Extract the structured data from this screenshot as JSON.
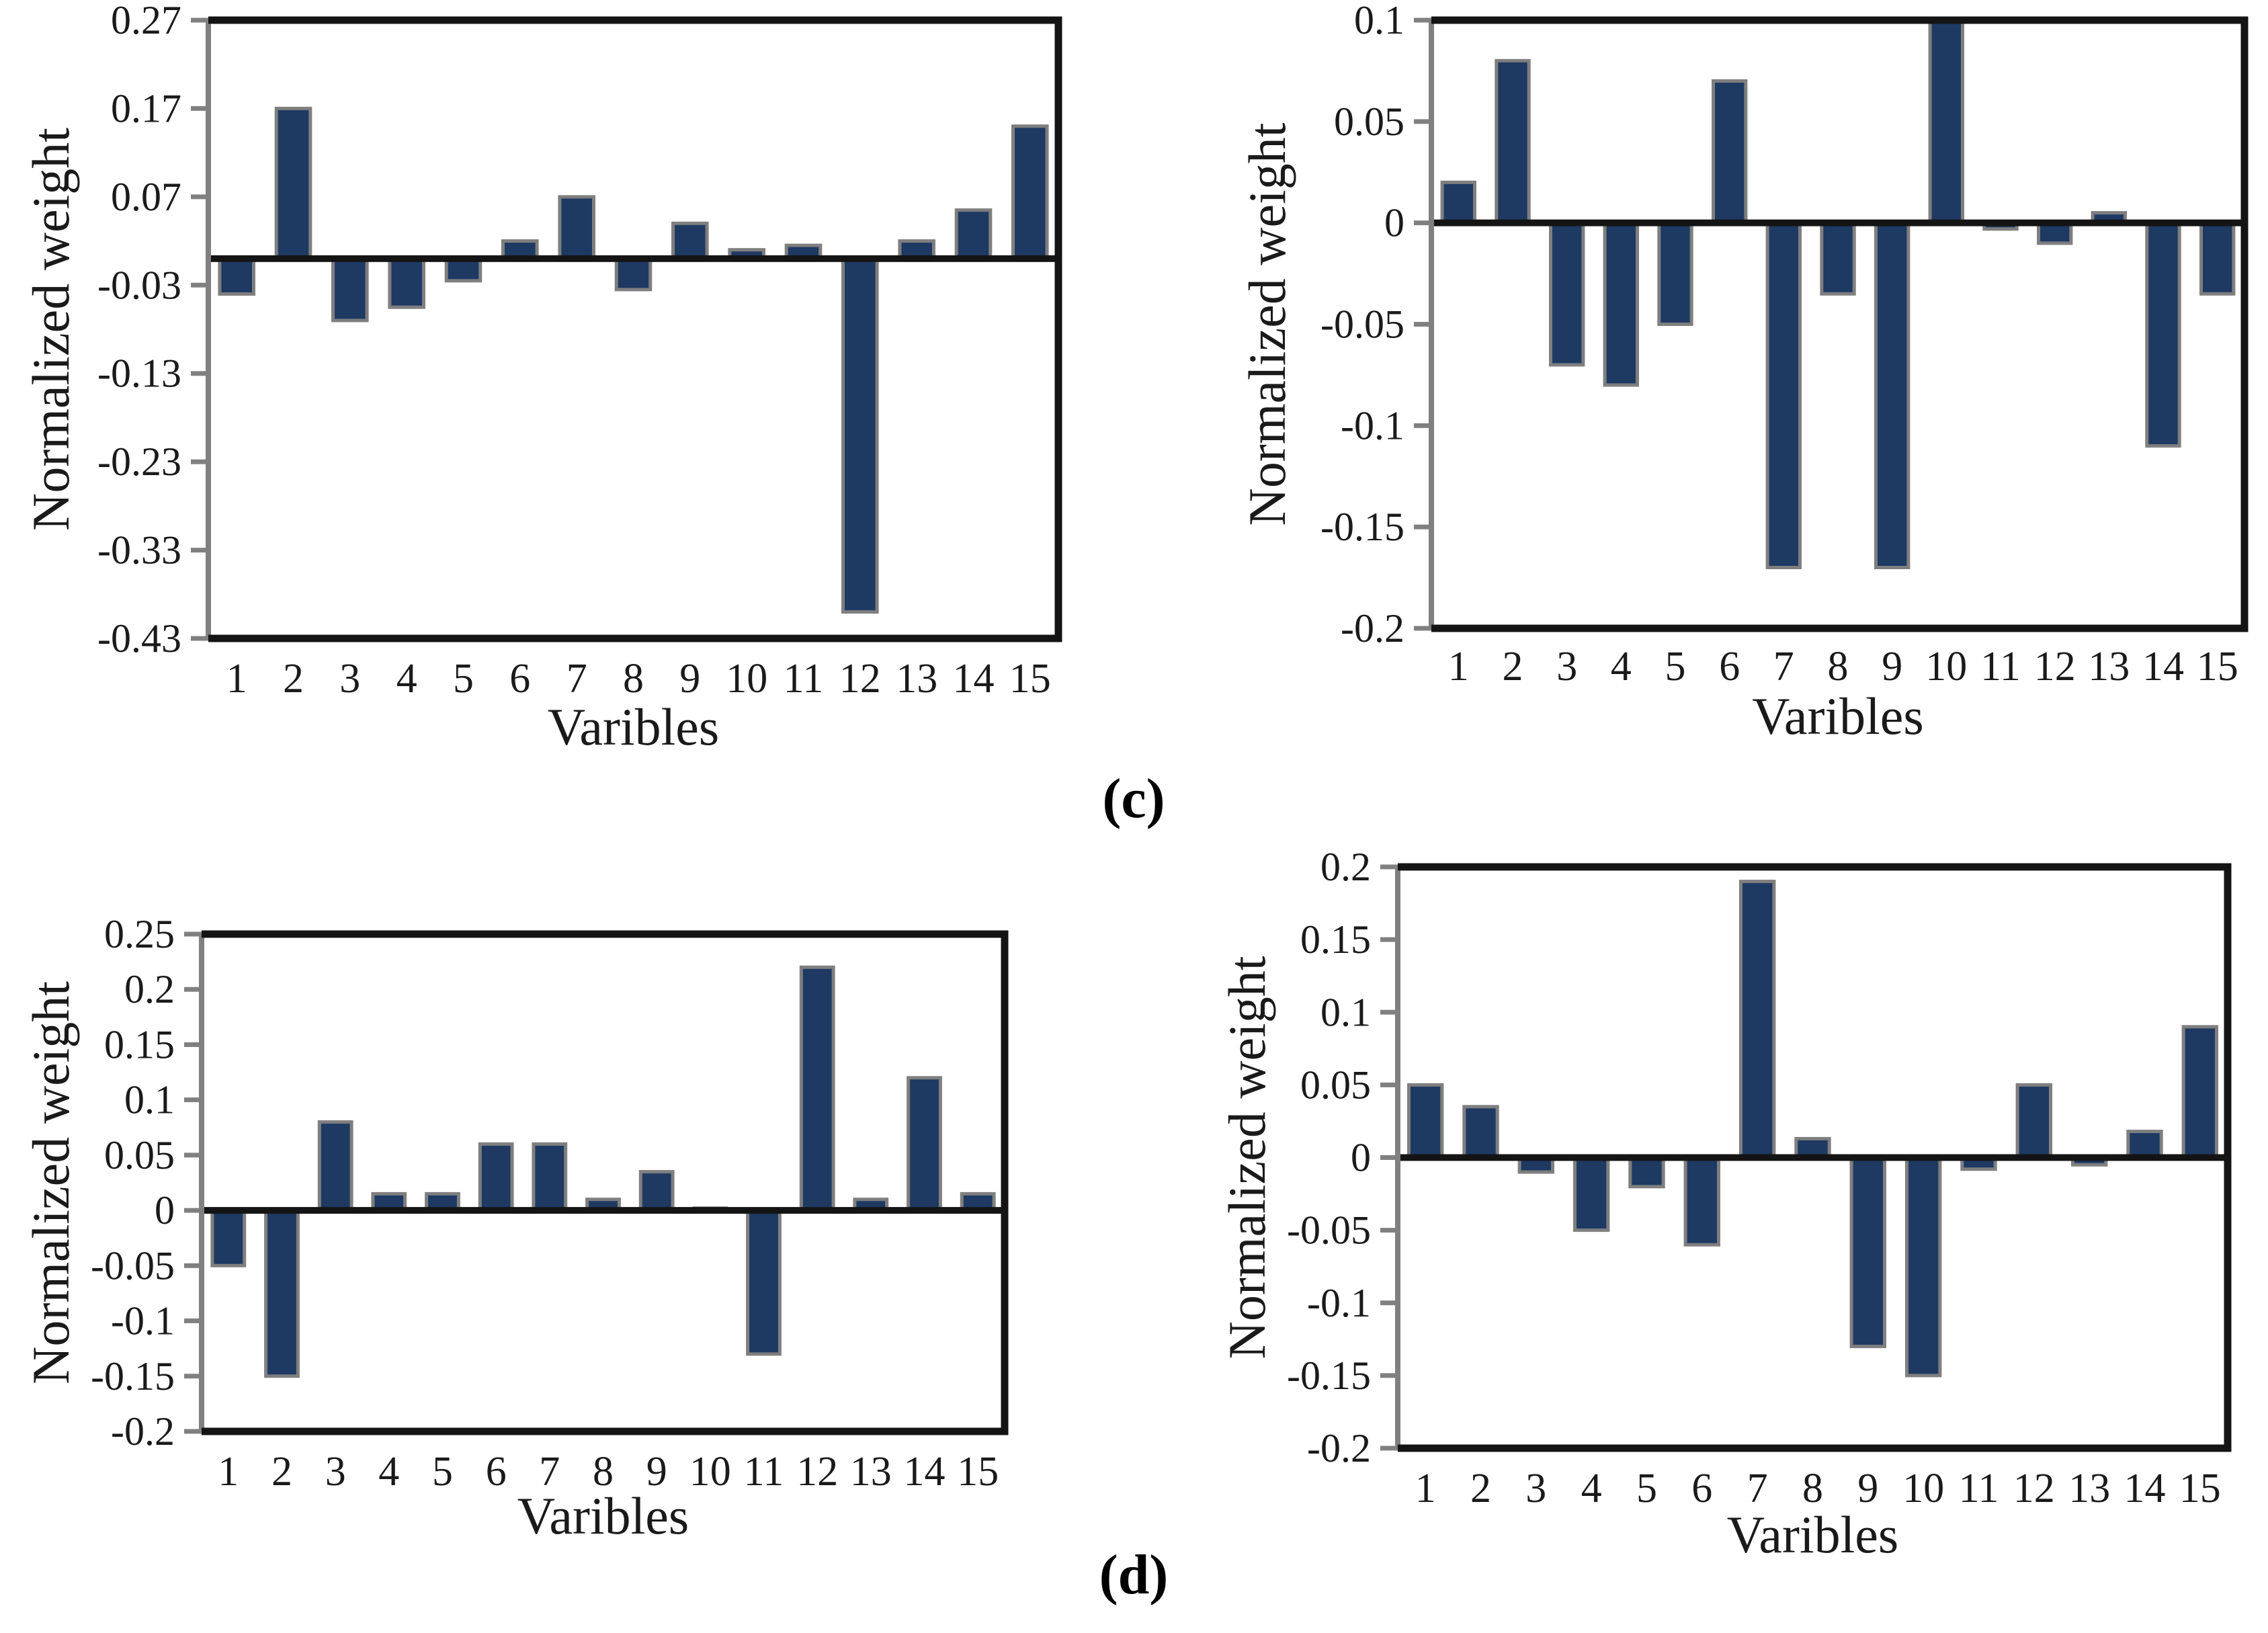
{
  "figure": {
    "panel_c_label": "(c)",
    "panel_d_label": "(d)"
  },
  "colors": {
    "bar_fill": "#1e3a63",
    "bar_border": "#7f7f7f",
    "axis_frame": "#141414",
    "zero_line": "#141414",
    "spine_and_ticks": "#808080",
    "text": "#1a1a1a"
  },
  "chart_data": [
    {
      "id": "c-left",
      "type": "bar",
      "xlabel": "Varibles",
      "ylabel": "Normalized weight",
      "categories": [
        "1",
        "2",
        "3",
        "4",
        "5",
        "6",
        "7",
        "8",
        "9",
        "10",
        "11",
        "12",
        "13",
        "14",
        "15"
      ],
      "values": [
        -0.04,
        0.17,
        -0.07,
        -0.055,
        -0.025,
        0.02,
        0.07,
        -0.035,
        0.04,
        0.01,
        0.015,
        -0.4,
        0.02,
        0.055,
        0.15
      ],
      "ylim": [
        -0.43,
        0.27
      ],
      "yticks": [
        0.27,
        0.17,
        0.07,
        -0.03,
        -0.13,
        -0.23,
        -0.33,
        -0.43
      ],
      "ytick_labels": [
        "0.27",
        "0.17",
        "0.07",
        "-0.03",
        "-0.13",
        "-0.23",
        "-0.33",
        "-0.43"
      ],
      "grid": false,
      "legend": "none"
    },
    {
      "id": "c-right",
      "type": "bar",
      "xlabel": "Varibles",
      "ylabel": "Normalized weight",
      "categories": [
        "1",
        "2",
        "3",
        "4",
        "5",
        "6",
        "7",
        "8",
        "9",
        "10",
        "11",
        "12",
        "13",
        "14",
        "15"
      ],
      "values": [
        0.02,
        0.08,
        -0.07,
        -0.08,
        -0.05,
        0.07,
        -0.17,
        -0.035,
        -0.17,
        0.1,
        -0.003,
        -0.01,
        0.005,
        -0.11,
        -0.035
      ],
      "ylim": [
        -0.2,
        0.1
      ],
      "yticks": [
        0.1,
        0.05,
        0,
        -0.05,
        -0.1,
        -0.15,
        -0.2
      ],
      "ytick_labels": [
        "0.1",
        "0.05",
        "0",
        "-0.05",
        "-0.1",
        "-0.15",
        "-0.2"
      ],
      "grid": false,
      "legend": "none"
    },
    {
      "id": "d-left",
      "type": "bar",
      "xlabel": "Varibles",
      "ylabel": "Normalized weight",
      "categories": [
        "1",
        "2",
        "3",
        "4",
        "5",
        "6",
        "7",
        "8",
        "9",
        "10",
        "11",
        "12",
        "13",
        "14",
        "15"
      ],
      "values": [
        -0.05,
        -0.15,
        0.08,
        0.015,
        0.015,
        0.06,
        0.06,
        0.01,
        0.035,
        0.002,
        -0.13,
        0.22,
        0.01,
        0.12,
        0.015
      ],
      "ylim": [
        -0.2,
        0.25
      ],
      "yticks": [
        0.25,
        0.2,
        0.15,
        0.1,
        0.05,
        0,
        -0.05,
        -0.1,
        -0.15,
        -0.2
      ],
      "ytick_labels": [
        "0.25",
        "0.2",
        "0.15",
        "0.1",
        "0.05",
        "0",
        "-0.05",
        "-0.1",
        "-0.15",
        "-0.2"
      ],
      "grid": false,
      "legend": "none"
    },
    {
      "id": "d-right",
      "type": "bar",
      "xlabel": "Varibles",
      "ylabel": "Normalized weight",
      "categories": [
        "1",
        "2",
        "3",
        "4",
        "5",
        "6",
        "7",
        "8",
        "9",
        "10",
        "11",
        "12",
        "13",
        "14",
        "15"
      ],
      "values": [
        0.05,
        0.035,
        -0.01,
        -0.05,
        -0.02,
        -0.06,
        0.19,
        0.013,
        -0.13,
        -0.15,
        -0.008,
        0.05,
        -0.005,
        0.018,
        0.09
      ],
      "ylim": [
        -0.2,
        0.2
      ],
      "yticks": [
        0.2,
        0.15,
        0.1,
        0.05,
        0,
        -0.05,
        -0.1,
        -0.15,
        -0.2
      ],
      "ytick_labels": [
        "0.2",
        "0.15",
        "0.1",
        "0.05",
        "0",
        "-0.05",
        "-0.1",
        "-0.15",
        "-0.2"
      ],
      "grid": false,
      "legend": "none"
    }
  ]
}
